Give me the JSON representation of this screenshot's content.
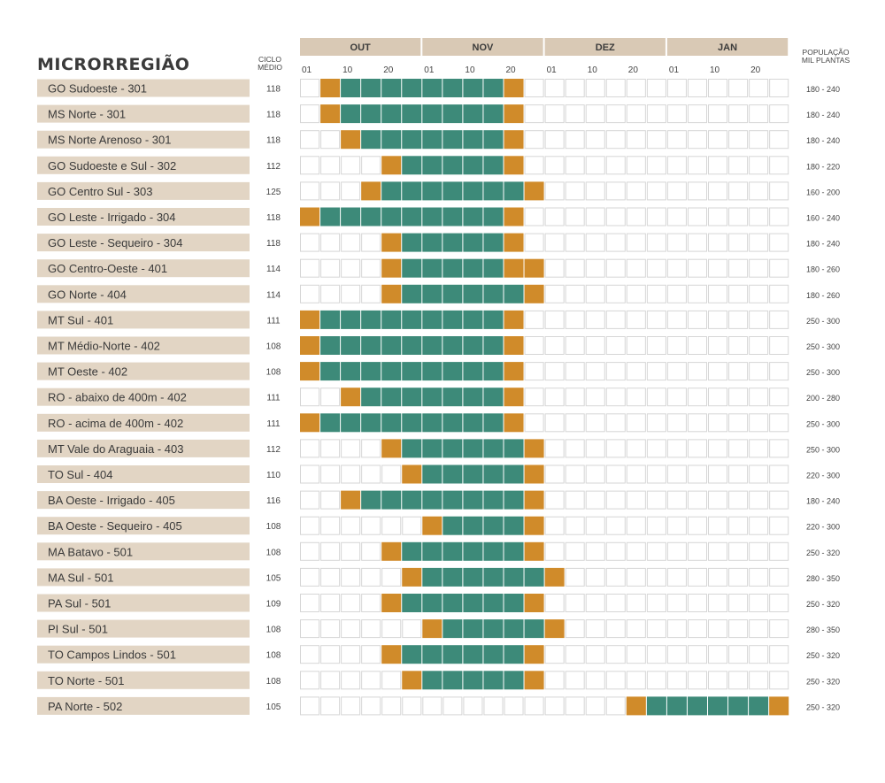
{
  "colors": {
    "label_bg": "#e2d5c4",
    "title": "#c7a77e",
    "month_bg": "#d9c9b5",
    "plant": "#d08b2a",
    "cycle": "#3d8a79",
    "empty_border": "#d6d6d6"
  },
  "header": {
    "title": "MICRORREGIÃO",
    "ciclo_label": [
      "CICLO",
      "MÉDIO"
    ],
    "pop_label": [
      "POPULAÇÃO",
      "MIL PLANTAS"
    ]
  },
  "chart_data": {
    "type": "table",
    "months": [
      "OUT",
      "NOV",
      "DEZ",
      "JAN"
    ],
    "day_ticks": [
      "01",
      "10",
      "20"
    ],
    "slots_per_month": 6,
    "legend_note": "orange = planting window start/end, green = cycle",
    "rows": [
      {
        "region": "GO Sudoeste - 301",
        "ciclo": "118",
        "pop": "180 - 240",
        "orange": [
          1,
          10
        ],
        "green": [
          2,
          9
        ]
      },
      {
        "region": "MS Norte - 301",
        "ciclo": "118",
        "pop": "180 - 240",
        "orange": [
          1,
          10
        ],
        "green": [
          2,
          9
        ]
      },
      {
        "region": "MS Norte Arenoso - 301",
        "ciclo": "118",
        "pop": "180 - 240",
        "orange": [
          2,
          10
        ],
        "green": [
          3,
          9
        ]
      },
      {
        "region": "GO Sudoeste e Sul - 302",
        "ciclo": "112",
        "pop": "180 - 220",
        "orange": [
          4,
          10
        ],
        "green": [
          5,
          9
        ]
      },
      {
        "region": "GO Centro Sul - 303",
        "ciclo": "125",
        "pop": "160 - 200",
        "orange": [
          3,
          11
        ],
        "green": [
          4,
          10
        ]
      },
      {
        "region": "GO Leste - Irrigado - 304",
        "ciclo": "118",
        "pop": "160 - 240",
        "orange": [
          0,
          10
        ],
        "green": [
          1,
          9
        ]
      },
      {
        "region": "GO Leste - Sequeiro - 304",
        "ciclo": "118",
        "pop": "180 - 240",
        "orange": [
          4,
          10
        ],
        "green": [
          5,
          9
        ]
      },
      {
        "region": "GO Centro-Oeste - 401",
        "ciclo": "114",
        "pop": "180 - 260",
        "orange": [
          4,
          10,
          11
        ],
        "green": [
          5,
          9
        ]
      },
      {
        "region": "GO Norte - 404",
        "ciclo": "114",
        "pop": "180 - 260",
        "orange": [
          4,
          11
        ],
        "green": [
          5,
          10
        ]
      },
      {
        "region": "MT Sul - 401",
        "ciclo": "111",
        "pop": "250 - 300",
        "orange": [
          0,
          10
        ],
        "green": [
          1,
          9
        ]
      },
      {
        "region": "MT Médio-Norte - 402",
        "ciclo": "108",
        "pop": "250 - 300",
        "orange": [
          0,
          10
        ],
        "green": [
          1,
          9
        ]
      },
      {
        "region": "MT Oeste - 402",
        "ciclo": "108",
        "pop": "250 - 300",
        "orange": [
          0,
          10
        ],
        "green": [
          1,
          9
        ]
      },
      {
        "region": "RO - abaixo de 400m - 402",
        "ciclo": "111",
        "pop": "200 - 280",
        "orange": [
          2,
          10
        ],
        "green": [
          3,
          9
        ]
      },
      {
        "region": "RO - acima de 400m - 402",
        "ciclo": "111",
        "pop": "250 - 300",
        "orange": [
          0,
          10
        ],
        "green": [
          1,
          9
        ]
      },
      {
        "region": "MT Vale do Araguaia - 403",
        "ciclo": "112",
        "pop": "250 - 300",
        "orange": [
          4,
          11
        ],
        "green": [
          5,
          10
        ]
      },
      {
        "region": "TO Sul - 404",
        "ciclo": "110",
        "pop": "220 - 300",
        "orange": [
          5,
          11
        ],
        "green": [
          6,
          10
        ]
      },
      {
        "region": "BA Oeste - Irrigado - 405",
        "ciclo": "116",
        "pop": "180 - 240",
        "orange": [
          2,
          11
        ],
        "green": [
          3,
          10
        ]
      },
      {
        "region": "BA Oeste - Sequeiro - 405",
        "ciclo": "108",
        "pop": "220 - 300",
        "orange": [
          6,
          11
        ],
        "green": [
          7,
          10
        ]
      },
      {
        "region": "MA Batavo - 501",
        "ciclo": "108",
        "pop": "250 - 320",
        "orange": [
          4,
          11
        ],
        "green": [
          5,
          10
        ]
      },
      {
        "region": "MA Sul - 501",
        "ciclo": "105",
        "pop": "280 - 350",
        "orange": [
          5,
          12
        ],
        "green": [
          6,
          11
        ]
      },
      {
        "region": "PA Sul - 501",
        "ciclo": "109",
        "pop": "250 - 320",
        "orange": [
          4,
          11
        ],
        "green": [
          5,
          10
        ]
      },
      {
        "region": "PI Sul - 501",
        "ciclo": "108",
        "pop": "280 - 350",
        "orange": [
          6,
          12
        ],
        "green": [
          7,
          11
        ]
      },
      {
        "region": "TO Campos Lindos - 501",
        "ciclo": "108",
        "pop": "250 - 320",
        "orange": [
          4,
          11
        ],
        "green": [
          5,
          10
        ]
      },
      {
        "region": "TO Norte - 501",
        "ciclo": "108",
        "pop": "250 - 320",
        "orange": [
          5,
          11
        ],
        "green": [
          6,
          10
        ]
      },
      {
        "region": "PA Norte - 502",
        "ciclo": "105",
        "pop": "250 - 320",
        "orange": [
          16,
          23
        ],
        "green": [
          17,
          22
        ]
      }
    ]
  }
}
